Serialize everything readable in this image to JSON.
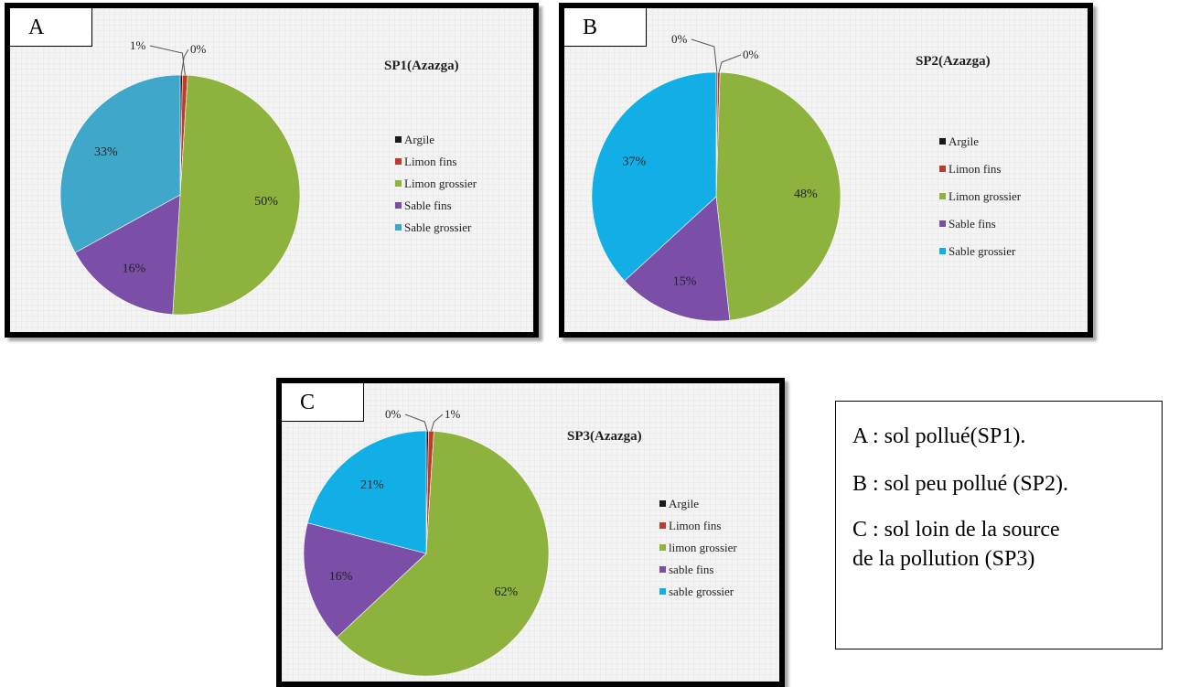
{
  "chart_data": [
    {
      "type": "pie",
      "panel_letter": "A",
      "title": "SP1(Azazga)",
      "categories": [
        "Argile",
        "Limon fins",
        "Limon grossier",
        "Sable fins",
        "Sable grossier"
      ],
      "values": [
        0.3,
        0.7,
        50,
        16,
        33
      ],
      "data_labels": [
        "0%",
        "1%",
        "50%",
        "16%",
        "33%"
      ],
      "colors": [
        "#1a1a1a",
        "#c0392b",
        "#8db33e",
        "#7b4fa8",
        "#3fa7c9"
      ],
      "legend": "right"
    },
    {
      "type": "pie",
      "panel_letter": "B",
      "title": "SP2(Azazga)",
      "categories": [
        "Argile",
        "Limon fins",
        "Limon grossier",
        "Sable fins",
        "Sable grossier"
      ],
      "values": [
        0.2,
        0.3,
        48,
        15,
        37
      ],
      "data_labels": [
        "0%",
        "0%",
        "48%",
        "15%",
        "37%"
      ],
      "colors": [
        "#1a1a1a",
        "#c0392b",
        "#8db33e",
        "#7b4fa8",
        "#12aee6"
      ],
      "legend": "right"
    },
    {
      "type": "pie",
      "panel_letter": "C",
      "title": "SP3(Azazga)",
      "categories": [
        "Argile",
        "Limon fins",
        "limon grossier",
        "sable fins",
        "sable grossier"
      ],
      "values": [
        0.3,
        0.7,
        62,
        16,
        21
      ],
      "data_labels": [
        "0%",
        "1%",
        "62%",
        "16%",
        "21%"
      ],
      "colors": [
        "#1a1a1a",
        "#c0392b",
        "#8db33e",
        "#7b4fa8",
        "#12aee6"
      ],
      "legend": "right"
    }
  ],
  "caption": {
    "line_a": "A : sol pollué(SP1).",
    "line_b": "B : sol peu pollué (SP2).",
    "line_c1": "C : sol loin de la source",
    "line_c2": "de la pollution (SP3)"
  }
}
